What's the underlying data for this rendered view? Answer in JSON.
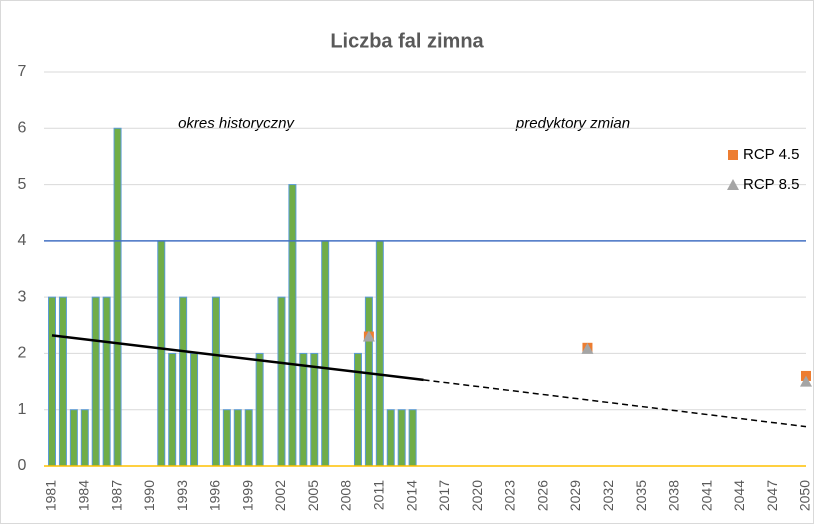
{
  "chart_data": {
    "type": "bar",
    "title": "Liczba fal zimna",
    "annotations": [
      "okres historyczny",
      "predyktory zmian"
    ],
    "xlim": [
      1981,
      2050
    ],
    "xticks": [
      1981,
      1984,
      1987,
      1990,
      1993,
      1996,
      1999,
      2002,
      2005,
      2008,
      2011,
      2014,
      2017,
      2020,
      2023,
      2026,
      2029,
      2032,
      2035,
      2038,
      2041,
      2044,
      2047,
      2050
    ],
    "ylim": [
      0,
      7
    ],
    "yticks": [
      0,
      1,
      2,
      3,
      4,
      5,
      6,
      7
    ],
    "grid": true,
    "legend": "right",
    "reference_lines": [
      {
        "value": 4,
        "color": "#4472c4"
      },
      {
        "value": 0,
        "color": "#ffc000"
      }
    ],
    "series": [
      {
        "type": "bar",
        "color": "#70ad47",
        "x": [
          1981,
          1982,
          1983,
          1984,
          1985,
          1986,
          1987,
          1988,
          1989,
          1990,
          1991,
          1992,
          1993,
          1994,
          1995,
          1996,
          1997,
          1998,
          1999,
          2000,
          2001,
          2002,
          2003,
          2004,
          2005,
          2006,
          2007,
          2008,
          2009,
          2010,
          2011,
          2012,
          2013,
          2014
        ],
        "values": [
          3,
          3,
          1,
          1,
          3,
          3,
          6,
          0,
          0,
          0,
          4,
          2,
          3,
          2,
          0,
          3,
          1,
          1,
          1,
          2,
          0,
          3,
          5,
          2,
          2,
          4,
          0,
          0,
          2,
          3,
          4,
          1,
          1,
          1
        ]
      },
      {
        "type": "line",
        "color": "#000000",
        "x": [
          1981,
          2015
        ],
        "values": [
          2.32,
          1.53
        ]
      },
      {
        "type": "line",
        "color": "#000000",
        "dashed": true,
        "x": [
          2015,
          2050
        ],
        "values": [
          1.53,
          0.7
        ]
      },
      {
        "type": "scatter",
        "name": "RCP 4.5",
        "marker": "square",
        "color": "#ed7d31",
        "x": [
          2010,
          2030,
          2050
        ],
        "values": [
          2.3,
          2.1,
          1.6
        ]
      },
      {
        "type": "scatter",
        "name": "RCP 8.5",
        "marker": "triangle",
        "color": "#a5a5a5",
        "x": [
          2010,
          2030,
          2050
        ],
        "values": [
          2.3,
          2.08,
          1.5
        ]
      }
    ]
  }
}
